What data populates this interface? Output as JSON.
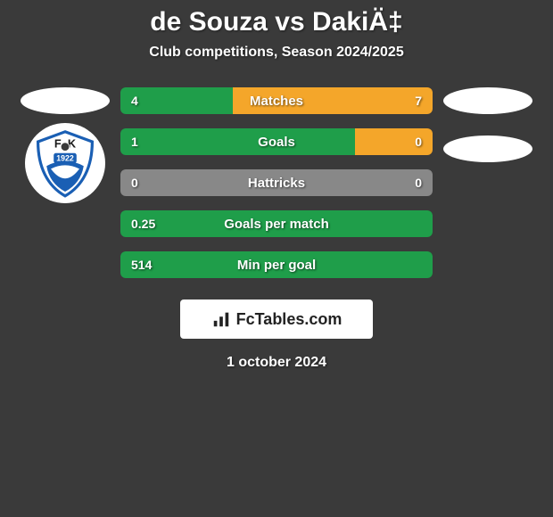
{
  "title": "de Souza vs DakiÄ‡",
  "subtitle": "Club competitions, Season 2024/2025",
  "date": "1 october 2024",
  "branding": {
    "text": "FcTables.com"
  },
  "colors": {
    "background": "#3a3a3a",
    "left_bar": "#1f9e4a",
    "right_bar": "#f4a62a",
    "neutral_bar": "#888888",
    "text": "#ffffff"
  },
  "left_player": {
    "avatar_shape": "ellipse",
    "club_badge": {
      "text_top": "F K",
      "year": "1922",
      "accent": "#1a5fb4"
    }
  },
  "right_player": {
    "avatar_shape": "ellipse",
    "secondary_ellipse": true
  },
  "stats": [
    {
      "label": "Matches",
      "left_value": "4",
      "right_value": "7",
      "left_pct": 36,
      "right_pct": 64,
      "left_color": "#1f9e4a",
      "right_color": "#f4a62a"
    },
    {
      "label": "Goals",
      "left_value": "1",
      "right_value": "0",
      "left_pct": 75,
      "right_pct": 25,
      "left_color": "#1f9e4a",
      "right_color": "#f4a62a"
    },
    {
      "label": "Hattricks",
      "left_value": "0",
      "right_value": "0",
      "left_pct": 100,
      "right_pct": 0,
      "left_color": "#888888",
      "right_color": "#888888"
    },
    {
      "label": "Goals per match",
      "left_value": "0.25",
      "right_value": "",
      "left_pct": 100,
      "right_pct": 0,
      "left_color": "#1f9e4a",
      "right_color": "#f4a62a"
    },
    {
      "label": "Min per goal",
      "left_value": "514",
      "right_value": "",
      "left_pct": 100,
      "right_pct": 0,
      "left_color": "#1f9e4a",
      "right_color": "#f4a62a"
    }
  ]
}
